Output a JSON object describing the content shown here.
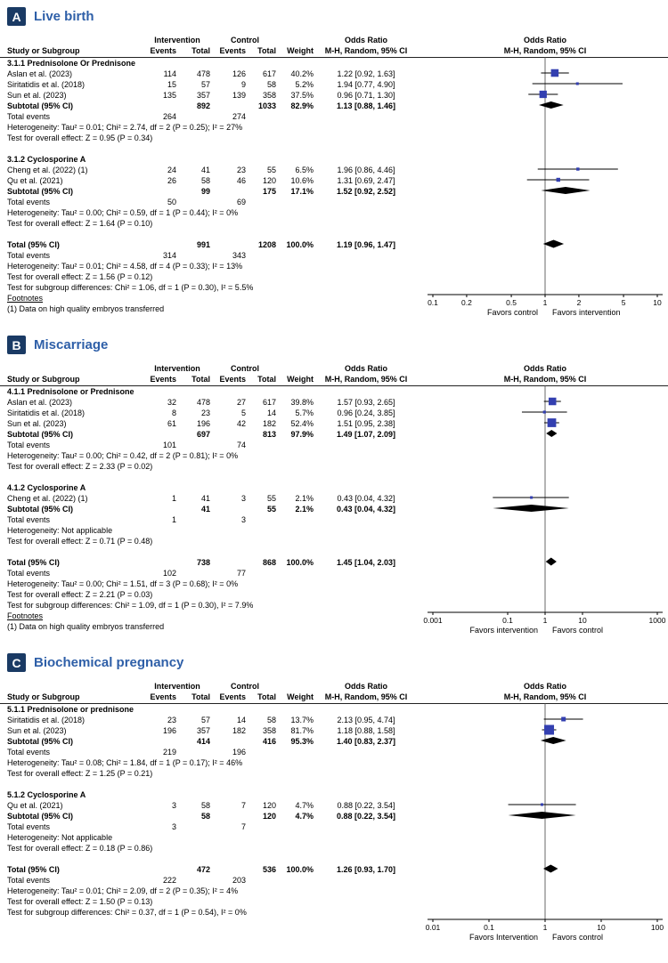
{
  "colors": {
    "badge_bg": "#1A3A64",
    "title": "#2E5FA8",
    "marker": "#333FB0",
    "diamond": "#000000",
    "axis": "#000000",
    "null_line": "#444444"
  },
  "chart_data": [
    {
      "type": "forest",
      "badge": "A",
      "title": "Live birth",
      "header": {
        "group1": "Intervention",
        "group2": "Control",
        "or_text": "Odds Ratio",
        "or_plot": "Odds Ratio",
        "study": "Study or Subgroup",
        "events": "Events",
        "total": "Total",
        "weight": "Weight",
        "method": "M-H, Random, 95% CI"
      },
      "axis": {
        "min": 0.1,
        "max": 10,
        "ticks": [
          0.1,
          0.2,
          0.5,
          1,
          2,
          5,
          10
        ],
        "favors_left": "Favors control",
        "favors_right": "Favors intervention"
      },
      "rows": [
        {
          "t": "subgroup",
          "label": "3.1.1 Prednisolone Or Prednisone"
        },
        {
          "t": "study",
          "label": "Aslan et al. (2023)",
          "ie": "114",
          "it": "478",
          "ce": "126",
          "ct": "617",
          "w": "40.2%",
          "ci": "1.22 [0.92, 1.63]",
          "or": 1.22,
          "lo": 0.92,
          "hi": 1.63,
          "wt": 40.2
        },
        {
          "t": "study",
          "label": "Siritatidis et al. (2018)",
          "ie": "15",
          "it": "57",
          "ce": "9",
          "ct": "58",
          "w": "5.2%",
          "ci": "1.94 [0.77, 4.90]",
          "or": 1.94,
          "lo": 0.77,
          "hi": 4.9,
          "wt": 5.2
        },
        {
          "t": "study",
          "label": "Sun et al. (2023)",
          "ie": "135",
          "it": "357",
          "ce": "139",
          "ct": "358",
          "w": "37.5%",
          "ci": "0.96 [0.71, 1.30]",
          "or": 0.96,
          "lo": 0.71,
          "hi": 1.3,
          "wt": 37.5
        },
        {
          "t": "subtotal",
          "label": "Subtotal (95% CI)",
          "it": "892",
          "ct": "1033",
          "w": "82.9%",
          "ci": "1.13 [0.88, 1.46]",
          "or": 1.13,
          "lo": 0.88,
          "hi": 1.46
        },
        {
          "t": "events",
          "label": "Total events",
          "ie": "264",
          "ce": "274"
        },
        {
          "t": "note",
          "label": "Heterogeneity: Tau² = 0.01; Chi² = 2.74, df = 2 (P = 0.25); I² = 27%"
        },
        {
          "t": "note",
          "label": "Test for overall effect: Z = 0.95 (P = 0.34)"
        },
        {
          "t": "gap"
        },
        {
          "t": "subgroup",
          "label": "3.1.2 Cyclosporine A"
        },
        {
          "t": "study",
          "label": "Cheng et al. (2022)  (1)",
          "ie": "24",
          "it": "41",
          "ce": "23",
          "ct": "55",
          "w": "6.5%",
          "ci": "1.96 [0.86, 4.46]",
          "or": 1.96,
          "lo": 0.86,
          "hi": 4.46,
          "wt": 6.5
        },
        {
          "t": "study",
          "label": "Qu et al. (2021)",
          "ie": "26",
          "it": "58",
          "ce": "46",
          "ct": "120",
          "w": "10.6%",
          "ci": "1.31 [0.69, 2.47]",
          "or": 1.31,
          "lo": 0.69,
          "hi": 2.47,
          "wt": 10.6
        },
        {
          "t": "subtotal",
          "label": "Subtotal (95% CI)",
          "it": "99",
          "ct": "175",
          "w": "17.1%",
          "ci": "1.52 [0.92, 2.52]",
          "or": 1.52,
          "lo": 0.92,
          "hi": 2.52
        },
        {
          "t": "events",
          "label": "Total events",
          "ie": "50",
          "ce": "69"
        },
        {
          "t": "note",
          "label": "Heterogeneity: Tau² = 0.00; Chi² = 0.59, df = 1 (P = 0.44); I² = 0%"
        },
        {
          "t": "note",
          "label": "Test for overall effect: Z = 1.64 (P = 0.10)"
        },
        {
          "t": "gap"
        },
        {
          "t": "total",
          "label": "Total (95% CI)",
          "it": "991",
          "ct": "1208",
          "w": "100.0%",
          "ci": "1.19 [0.96, 1.47]",
          "or": 1.19,
          "lo": 0.96,
          "hi": 1.47
        },
        {
          "t": "events",
          "label": "Total events",
          "ie": "314",
          "ce": "343"
        },
        {
          "t": "note",
          "label": "Heterogeneity: Tau² = 0.01; Chi² = 4.58, df = 4 (P = 0.33); I² = 13%"
        },
        {
          "t": "note",
          "label": "Test for overall effect: Z = 1.56 (P = 0.12)"
        },
        {
          "t": "note",
          "label": "Test for subgroup differences: Chi² = 1.06, df = 1 (P = 0.30), I² = 5.5%"
        }
      ],
      "footnotes": [
        "Footnotes",
        "(1) Data on high quality embryos transferred"
      ]
    },
    {
      "type": "forest",
      "badge": "B",
      "title": "Miscarriage",
      "header": {
        "group1": "Intervention",
        "group2": "Control",
        "or_text": "Odds Ratio",
        "or_plot": "Odds Ratio",
        "study": "Study or Subgroup",
        "events": "Events",
        "total": "Total",
        "weight": "Weight",
        "method": "M-H, Random, 95% CI"
      },
      "axis": {
        "min": 0.001,
        "max": 1000,
        "ticks": [
          0.001,
          0.1,
          1,
          10,
          1000
        ],
        "favors_left": "Favors intervention",
        "favors_right": "Favors control"
      },
      "rows": [
        {
          "t": "subgroup",
          "label": "4.1.1 Prednisolone or Prednisone"
        },
        {
          "t": "study",
          "label": "Aslan et al. (2023)",
          "ie": "32",
          "it": "478",
          "ce": "27",
          "ct": "617",
          "w": "39.8%",
          "ci": "1.57 [0.93, 2.65]",
          "or": 1.57,
          "lo": 0.93,
          "hi": 2.65,
          "wt": 39.8
        },
        {
          "t": "study",
          "label": "Siritatidis et al. (2018)",
          "ie": "8",
          "it": "23",
          "ce": "5",
          "ct": "14",
          "w": "5.7%",
          "ci": "0.96 [0.24, 3.85]",
          "or": 0.96,
          "lo": 0.24,
          "hi": 3.85,
          "wt": 5.7
        },
        {
          "t": "study",
          "label": "Sun et al. (2023)",
          "ie": "61",
          "it": "196",
          "ce": "42",
          "ct": "182",
          "w": "52.4%",
          "ci": "1.51 [0.95, 2.38]",
          "or": 1.51,
          "lo": 0.95,
          "hi": 2.38,
          "wt": 52.4
        },
        {
          "t": "subtotal",
          "label": "Subtotal (95% CI)",
          "it": "697",
          "ct": "813",
          "w": "97.9%",
          "ci": "1.49 [1.07, 2.09]",
          "or": 1.49,
          "lo": 1.07,
          "hi": 2.09
        },
        {
          "t": "events",
          "label": "Total events",
          "ie": "101",
          "ce": "74"
        },
        {
          "t": "note",
          "label": "Heterogeneity: Tau² = 0.00; Chi² = 0.42, df = 2 (P = 0.81); I² = 0%"
        },
        {
          "t": "note",
          "label": "Test for overall effect: Z = 2.33 (P = 0.02)"
        },
        {
          "t": "gap"
        },
        {
          "t": "subgroup",
          "label": "4.1.2 Cyclosporine A"
        },
        {
          "t": "study",
          "label": "Cheng et al. (2022)  (1)",
          "ie": "1",
          "it": "41",
          "ce": "3",
          "ct": "55",
          "w": "2.1%",
          "ci": "0.43 [0.04, 4.32]",
          "or": 0.43,
          "lo": 0.04,
          "hi": 4.32,
          "wt": 2.1
        },
        {
          "t": "subtotal",
          "label": "Subtotal (95% CI)",
          "it": "41",
          "ct": "55",
          "w": "2.1%",
          "ci": "0.43 [0.04, 4.32]",
          "or": 0.43,
          "lo": 0.04,
          "hi": 4.32
        },
        {
          "t": "events",
          "label": "Total events",
          "ie": "1",
          "ce": "3"
        },
        {
          "t": "note",
          "label": "Heterogeneity: Not applicable"
        },
        {
          "t": "note",
          "label": "Test for overall effect: Z = 0.71 (P = 0.48)"
        },
        {
          "t": "gap"
        },
        {
          "t": "total",
          "label": "Total (95% CI)",
          "it": "738",
          "ct": "868",
          "w": "100.0%",
          "ci": "1.45 [1.04, 2.03]",
          "or": 1.45,
          "lo": 1.04,
          "hi": 2.03
        },
        {
          "t": "events",
          "label": "Total events",
          "ie": "102",
          "ce": "77"
        },
        {
          "t": "note",
          "label": "Heterogeneity: Tau² = 0.00; Chi² = 1.51, df = 3 (P = 0.68); I² = 0%"
        },
        {
          "t": "note",
          "label": "Test for overall effect: Z = 2.21 (P = 0.03)"
        },
        {
          "t": "note",
          "label": "Test for subgroup differences: Chi² = 1.09, df = 1 (P = 0.30), I² = 7.9%"
        }
      ],
      "footnotes": [
        "Footnotes",
        "(1) Data on high quality embryos transferred"
      ]
    },
    {
      "type": "forest",
      "badge": "C",
      "title": "Biochemical pregnancy",
      "header": {
        "group1": "Intervention",
        "group2": "Control",
        "or_text": "Odds Ratio",
        "or_plot": "Odds Ratio",
        "study": "Study or Subgroup",
        "events": "Events",
        "total": "Total",
        "weight": "Weight",
        "method": "M-H, Random, 95% CI"
      },
      "axis": {
        "min": 0.01,
        "max": 100,
        "ticks": [
          0.01,
          0.1,
          1,
          10,
          100
        ],
        "favors_left": "Favors Intervention",
        "favors_right": "Favors control"
      },
      "rows": [
        {
          "t": "subgroup",
          "label": "5.1.1 Prednisolone or prednisone"
        },
        {
          "t": "study",
          "label": "Siritatidis et al. (2018)",
          "ie": "23",
          "it": "57",
          "ce": "14",
          "ct": "58",
          "w": "13.7%",
          "ci": "2.13 [0.95, 4.74]",
          "or": 2.13,
          "lo": 0.95,
          "hi": 4.74,
          "wt": 13.7
        },
        {
          "t": "study",
          "label": "Sun et al. (2023)",
          "ie": "196",
          "it": "357",
          "ce": "182",
          "ct": "358",
          "w": "81.7%",
          "ci": "1.18 [0.88, 1.58]",
          "or": 1.18,
          "lo": 0.88,
          "hi": 1.58,
          "wt": 81.7
        },
        {
          "t": "subtotal",
          "label": "Subtotal (95% CI)",
          "it": "414",
          "ct": "416",
          "w": "95.3%",
          "ci": "1.40 [0.83, 2.37]",
          "or": 1.4,
          "lo": 0.83,
          "hi": 2.37
        },
        {
          "t": "events",
          "label": "Total events",
          "ie": "219",
          "ce": "196"
        },
        {
          "t": "note",
          "label": "Heterogeneity: Tau² = 0.08; Chi² = 1.84, df = 1 (P = 0.17); I² = 46%"
        },
        {
          "t": "note",
          "label": "Test for overall effect: Z = 1.25 (P = 0.21)"
        },
        {
          "t": "gap"
        },
        {
          "t": "subgroup",
          "label": "5.1.2 Cyclosporine A"
        },
        {
          "t": "study",
          "label": "Qu et al. (2021)",
          "ie": "3",
          "it": "58",
          "ce": "7",
          "ct": "120",
          "w": "4.7%",
          "ci": "0.88 [0.22, 3.54]",
          "or": 0.88,
          "lo": 0.22,
          "hi": 3.54,
          "wt": 4.7
        },
        {
          "t": "subtotal",
          "label": "Subtotal (95% CI)",
          "it": "58",
          "ct": "120",
          "w": "4.7%",
          "ci": "0.88 [0.22, 3.54]",
          "or": 0.88,
          "lo": 0.22,
          "hi": 3.54
        },
        {
          "t": "events",
          "label": "Total events",
          "ie": "3",
          "ce": "7"
        },
        {
          "t": "note",
          "label": "Heterogeneity: Not applicable"
        },
        {
          "t": "note",
          "label": "Test for overall effect: Z = 0.18 (P = 0.86)"
        },
        {
          "t": "gap"
        },
        {
          "t": "total",
          "label": "Total (95% CI)",
          "it": "472",
          "ct": "536",
          "w": "100.0%",
          "ci": "1.26 [0.93, 1.70]",
          "or": 1.26,
          "lo": 0.93,
          "hi": 1.7
        },
        {
          "t": "events",
          "label": "Total events",
          "ie": "222",
          "ce": "203"
        },
        {
          "t": "note",
          "label": "Heterogeneity: Tau² = 0.01; Chi² = 2.09, df = 2 (P = 0.35); I² = 4%"
        },
        {
          "t": "note",
          "label": "Test for overall effect: Z = 1.50 (P = 0.13)"
        },
        {
          "t": "note",
          "label": "Test for subgroup differences: Chi² = 0.37, df = 1 (P = 0.54), I² = 0%"
        }
      ],
      "footnotes": []
    }
  ]
}
